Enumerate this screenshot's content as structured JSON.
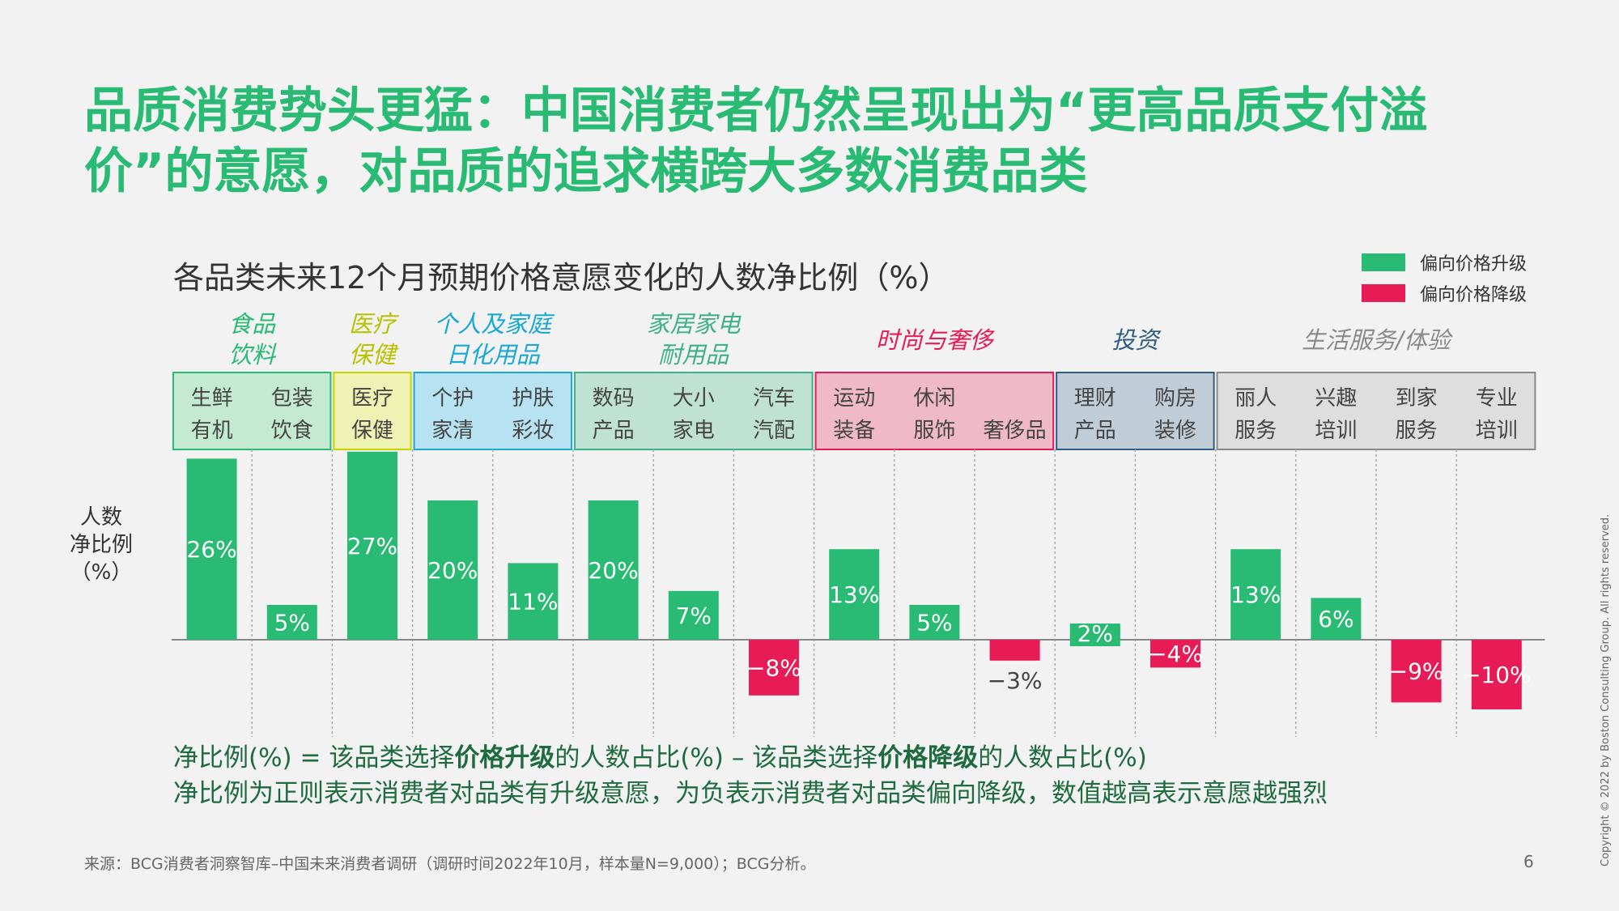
{
  "slide": {
    "title": "品质消费势头更猛：中国消费者仍然呈现出为“更高品质支付溢价”的意愿，对品质的追求横跨大多数消费品类",
    "page_number": "6",
    "copyright": "Copyright © 2022 by Boston Consulting Group. All rights reserved.",
    "source": "来源：BCG消费者洞察智库–中国未来消费者调研（调研时间2022年10月，样本量N=9,000）；BCG分析。"
  },
  "legend": [
    {
      "label": "偏向价格升级",
      "color": "#29ba74"
    },
    {
      "label": "偏向价格降级",
      "color": "#e71c57"
    }
  ],
  "ylabel_lines": [
    "人数",
    "净比例",
    "（%）"
  ],
  "formula": {
    "line1_prefix": "净比例(%) = 该品类选择",
    "line1_bold1": "价格升级",
    "line1_mid": "的人数占比(%) – 该品类选择",
    "line1_bold2": "价格降级",
    "line1_suffix": "的人数占比(%)",
    "line2": "净比例为正则表示消费者对品类有升级意愿，为负表示消费者对品类偏向降级，数值越高表示意愿越强烈"
  },
  "chart_data": {
    "type": "bar",
    "title": "各品类未来12个月预期价格意愿变化的人数净比例（%）",
    "ylabel": "人数净比例（%）",
    "groups": [
      {
        "name": [
          "食品",
          "饮料"
        ],
        "color": "#29ba74",
        "fill": "#c5ead2",
        "text_color": "#29ba74",
        "categories": [
          [
            "生鲜",
            "有机"
          ],
          [
            "包装",
            "饮食"
          ]
        ]
      },
      {
        "name": [
          "医疗",
          "保健"
        ],
        "color": "#c8d400",
        "fill": "#eef3b4",
        "text_color": "#b7c200",
        "categories": [
          [
            "医疗",
            "保健"
          ]
        ]
      },
      {
        "name": [
          "个人及家庭",
          "日化用品"
        ],
        "color": "#1aa8d4",
        "fill": "#b7e2f2",
        "text_color": "#1aa8d4",
        "categories": [
          [
            "个护",
            "家清"
          ],
          [
            "护肤",
            "彩妆"
          ]
        ]
      },
      {
        "name": [
          "家居家电",
          "耐用品"
        ],
        "color": "#3eb08a",
        "fill": "#bfe2d4",
        "text_color": "#3eb08a",
        "categories": [
          [
            "数码",
            "产品"
          ],
          [
            "大小",
            "家电"
          ],
          [
            "汽车",
            "汽配"
          ]
        ]
      },
      {
        "name": [
          "时尚与奢侈"
        ],
        "color": "#e71c57",
        "fill": "#f0b9c8",
        "text_color": "#e71c57",
        "categories": [
          [
            "运动",
            "装备"
          ],
          [
            "休闲",
            "服饰"
          ],
          [
            "奢侈品"
          ]
        ]
      },
      {
        "name": [
          "投资"
        ],
        "color": "#2f5c85",
        "fill": "#c0ccd6",
        "text_color": "#2f5c85",
        "categories": [
          [
            "理财",
            "产品"
          ],
          [
            "购房",
            "装修"
          ]
        ]
      },
      {
        "name": [
          "生活服务/体验"
        ],
        "color": "#8a8a8a",
        "fill": "#dedede",
        "text_color": "#8a8a8a",
        "categories": [
          [
            "丽人",
            "服务"
          ],
          [
            "兴趣",
            "培训"
          ],
          [
            "到家",
            "服务"
          ],
          [
            "专业",
            "培训"
          ]
        ]
      }
    ],
    "values": [
      26,
      5,
      27,
      20,
      11,
      20,
      7,
      -8,
      13,
      5,
      -3,
      2,
      -4,
      13,
      6,
      -9,
      -10
    ],
    "value_labels": [
      "26%",
      "5%",
      "27%",
      "20%",
      "11%",
      "20%",
      "7%",
      "−8%",
      "13%",
      "5%",
      "−3%",
      "2%",
      "−4%",
      "13%",
      "6%",
      "−9%",
      "−10%"
    ],
    "positive_color": "#29ba74",
    "negative_color": "#e71c57"
  }
}
